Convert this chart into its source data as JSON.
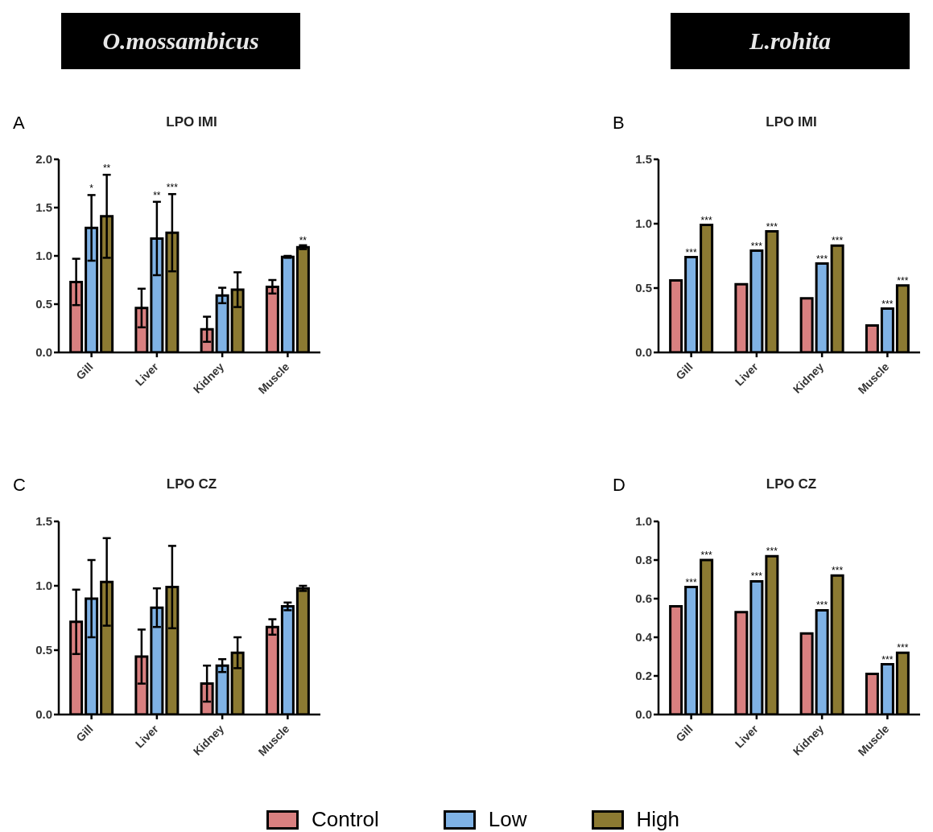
{
  "chart_data": [
    {
      "type": "bar",
      "title": "LPO IMI",
      "annotations": [
        "A",
        "O.mossambicus",
        {
          "text": "*",
          "x": "Gill",
          "y": 1.63
        },
        "**",
        {
          "text": "**",
          "x": "Liver",
          "y": 1.56
        },
        "***"
      ],
      "legend": "bottom",
      "categories": [
        "Gill",
        "Liver",
        "Kidney",
        "Muscle"
      ],
      "ylim": [
        0,
        2
      ],
      "yticks": [
        {
          "value": 0,
          "label": "0.0"
        },
        {
          "value": 0.5,
          "label": "0.5"
        },
        {
          "value": 1,
          "label": "1.0"
        },
        {
          "value": 1.5,
          "label": "1.5"
        },
        {
          "value": 2,
          "label": "2.0"
        }
      ],
      "grid": false,
      "series": [
        {
          "name": "Control",
          "color": "#d98080",
          "values": [
            0.73,
            0.46,
            0.24,
            0.68
          ],
          "errors": [
            0.24,
            0.2,
            0.13,
            0.07
          ]
        },
        {
          "name": "Low",
          "color": "#7fb2e5",
          "values": [
            1.29,
            1.18,
            0.59,
            0.99
          ],
          "errors": [
            0.34,
            0.38,
            0.08,
            0.01
          ]
        },
        {
          "name": "High",
          "color": "#8c7a32",
          "values": [
            1.41,
            1.24,
            0.65,
            1.09
          ],
          "errors": [
            0.43,
            0.4,
            0.18,
            0.02
          ],
          "value_labels": [
            null,
            null,
            null,
            "**"
          ]
        }
      ]
    },
    {
      "type": "bar",
      "title": "LPO IMI",
      "annotations": [
        "B",
        "L.rohita"
      ],
      "categories": [
        "Gill",
        "Liver",
        "Kidney",
        "Muscle"
      ],
      "ylim": [
        0,
        1.5
      ],
      "yticks": [
        {
          "value": 0,
          "label": "0.0"
        },
        {
          "value": 0.5,
          "label": "0.5"
        },
        {
          "value": 1,
          "label": "1.0"
        },
        {
          "value": 1.5,
          "label": "1.5"
        }
      ],
      "grid": false,
      "series": [
        {
          "color": "#d98080",
          "values": [
            0.56,
            0.53,
            0.42,
            0.21
          ]
        },
        {
          "color": "#7fb2e5",
          "values": [
            0.74,
            0.79,
            0.69,
            0.34
          ],
          "value_labels": [
            "***",
            "***",
            "***",
            "***"
          ]
        },
        {
          "color": "#8c7a32",
          "values": [
            0.99,
            0.94,
            0.83,
            0.52
          ],
          "value_labels": [
            "***",
            "***",
            "***",
            "***"
          ]
        }
      ]
    },
    {
      "type": "bar",
      "title": "LPO CZ",
      "annotations": [
        "C"
      ],
      "categories": [
        "Gill",
        "Liver",
        "Kidney",
        "Muscle"
      ],
      "ylim": [
        0,
        1.5
      ],
      "yticks": [
        {
          "value": 0,
          "label": "0.0"
        },
        {
          "value": 0.5,
          "label": "0.5"
        },
        {
          "value": 1,
          "label": "1.0"
        },
        {
          "value": 1.5,
          "label": "1.5"
        }
      ],
      "grid": false,
      "series": [
        {
          "color": "#d98080",
          "values": [
            0.72,
            0.45,
            0.24,
            0.68
          ],
          "errors": [
            0.25,
            0.21,
            0.14,
            0.06
          ]
        },
        {
          "color": "#7fb2e5",
          "values": [
            0.9,
            0.83,
            0.38,
            0.84
          ],
          "errors": [
            0.3,
            0.15,
            0.05,
            0.03
          ]
        },
        {
          "color": "#8c7a32",
          "values": [
            1.03,
            0.99,
            0.48,
            0.98
          ],
          "errors": [
            0.34,
            0.32,
            0.12,
            0.02
          ]
        }
      ]
    },
    {
      "type": "bar",
      "title": "LPO CZ",
      "annotations": [
        "D"
      ],
      "categories": [
        "Gill",
        "Liver",
        "Kidney",
        "Muscle"
      ],
      "ylim": [
        0,
        1
      ],
      "yticks": [
        {
          "value": 0,
          "label": "0.0"
        },
        {
          "value": 0.2,
          "label": "0.2"
        },
        {
          "value": 0.4,
          "label": "0.4"
        },
        {
          "value": 0.6,
          "label": "0.6"
        },
        {
          "value": 0.8,
          "label": "0.8"
        },
        {
          "value": 1,
          "label": "1.0"
        }
      ],
      "grid": false,
      "series": [
        {
          "color": "#d98080",
          "values": [
            0.56,
            0.53,
            0.42,
            0.21
          ]
        },
        {
          "color": "#7fb2e5",
          "values": [
            0.66,
            0.69,
            0.54,
            0.26
          ],
          "value_labels": [
            "***",
            "***",
            "***",
            "***"
          ]
        },
        {
          "color": "#8c7a32",
          "values": [
            0.8,
            0.82,
            0.72,
            0.32
          ],
          "value_labels": [
            "***",
            "***",
            "***",
            "***"
          ]
        }
      ]
    }
  ]
}
